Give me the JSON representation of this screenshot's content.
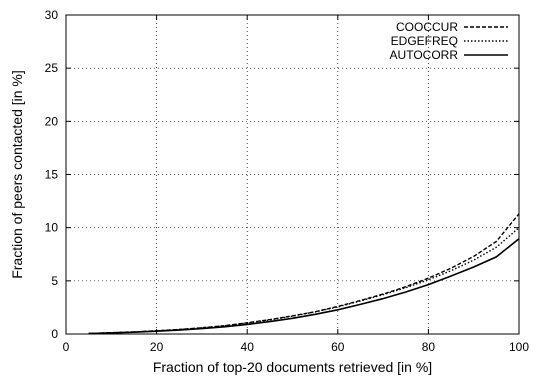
{
  "chart_data": {
    "type": "line",
    "xlabel": "Fraction of top-20 documents retrieved [in %]",
    "ylabel": "Fraction of peers contacted [in %]",
    "xlim": [
      0,
      100
    ],
    "ylim": [
      0,
      30
    ],
    "xticks": [
      0,
      20,
      40,
      60,
      80,
      100
    ],
    "yticks": [
      0,
      5,
      10,
      15,
      20,
      25,
      30
    ],
    "grid": true,
    "legend_position": "top-right",
    "series": [
      {
        "name": "COOCCUR",
        "style": "dashed",
        "x": [
          5,
          10,
          15,
          20,
          25,
          30,
          35,
          40,
          45,
          50,
          55,
          60,
          65,
          70,
          75,
          80,
          85,
          90,
          95,
          100
        ],
        "y": [
          0.05,
          0.12,
          0.2,
          0.3,
          0.42,
          0.58,
          0.78,
          1.05,
          1.35,
          1.7,
          2.1,
          2.6,
          3.15,
          3.75,
          4.45,
          5.25,
          6.2,
          7.3,
          8.7,
          11.3
        ]
      },
      {
        "name": "EDGEFREQ",
        "style": "dotted",
        "x": [
          5,
          10,
          15,
          20,
          25,
          30,
          35,
          40,
          45,
          50,
          55,
          60,
          65,
          70,
          75,
          80,
          85,
          90,
          95,
          100
        ],
        "y": [
          0.05,
          0.12,
          0.2,
          0.3,
          0.42,
          0.58,
          0.77,
          1.03,
          1.33,
          1.68,
          2.08,
          2.55,
          3.1,
          3.7,
          4.35,
          5.1,
          5.95,
          6.95,
          8.15,
          10.0
        ]
      },
      {
        "name": "AUTOCORR",
        "style": "solid",
        "x": [
          5,
          10,
          15,
          20,
          25,
          30,
          35,
          40,
          45,
          50,
          55,
          60,
          65,
          70,
          75,
          80,
          85,
          90,
          95,
          100
        ],
        "y": [
          0.04,
          0.1,
          0.17,
          0.26,
          0.37,
          0.51,
          0.68,
          0.9,
          1.17,
          1.48,
          1.85,
          2.28,
          2.78,
          3.33,
          3.95,
          4.65,
          5.45,
          6.3,
          7.25,
          8.95
        ]
      }
    ]
  }
}
